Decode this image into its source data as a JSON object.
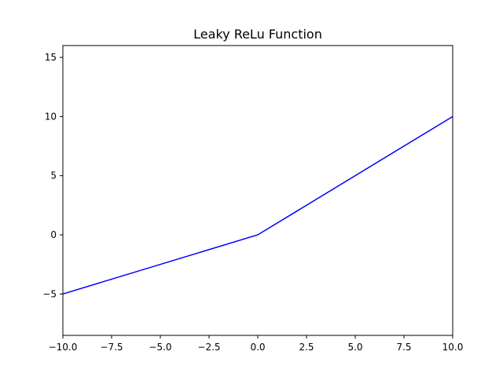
{
  "chart_data": {
    "type": "line",
    "title": "Leaky ReLu Function",
    "xlabel": "",
    "ylabel": "",
    "xlim": [
      -10,
      10
    ],
    "ylim": [
      -8.5,
      16
    ],
    "grid": false,
    "xticks": [
      -10,
      -7.5,
      -5,
      -2.5,
      0,
      2.5,
      5,
      7.5,
      10
    ],
    "xtick_labels": [
      "−10.0",
      "−7.5",
      "−5.0",
      "−2.5",
      "0.0",
      "2.5",
      "5.0",
      "7.5",
      "10.0"
    ],
    "yticks": [
      -5,
      0,
      5,
      10,
      15
    ],
    "ytick_labels": [
      "−5",
      "0",
      "5",
      "10",
      "15"
    ],
    "series": [
      {
        "color": "#0000ff",
        "x": [
          -10,
          0,
          10
        ],
        "y": [
          -5,
          0,
          10
        ]
      }
    ]
  }
}
